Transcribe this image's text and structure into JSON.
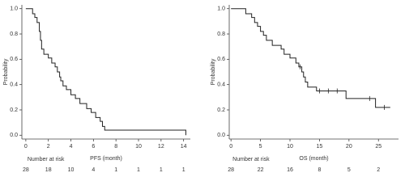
{
  "chart_data": [
    {
      "type": "step",
      "xlabel": "PFS  (month)",
      "ylabel": "Probability",
      "color": "#222222",
      "x": [
        0,
        0.6,
        0.8,
        1.0,
        1.2,
        1.3,
        1.4,
        1.6,
        2.0,
        2.3,
        2.6,
        2.8,
        3.0,
        3.1,
        3.3,
        3.6,
        4.0,
        4.4,
        4.8,
        5.4,
        5.8,
        6.2,
        6.6,
        6.8,
        7.0,
        14.2
      ],
      "values": [
        1.0,
        0.96,
        0.93,
        0.89,
        0.82,
        0.75,
        0.68,
        0.64,
        0.61,
        0.57,
        0.54,
        0.5,
        0.46,
        0.43,
        0.39,
        0.36,
        0.32,
        0.29,
        0.25,
        0.21,
        0.18,
        0.14,
        0.11,
        0.07,
        0.04,
        0.0
      ],
      "xlim": [
        -0.35,
        14.6
      ],
      "xticks": [
        0,
        2,
        4,
        6,
        8,
        10,
        12,
        14
      ],
      "ylim": [
        -0.03,
        1.03
      ],
      "yticks": [
        {
          "value": 0,
          "label": "0.0"
        },
        {
          "value": 0.2,
          "label": "0.2"
        },
        {
          "value": 0.4,
          "label": "0.4"
        },
        {
          "value": 0.6,
          "label": "0.6"
        },
        {
          "value": 0.8,
          "label": "0.8"
        },
        {
          "value": 1,
          "label": "1.0"
        }
      ],
      "risk_title": "Number at risk",
      "risk_counts": [
        28,
        18,
        10,
        4,
        1,
        1,
        1,
        1
      ]
    },
    {
      "type": "step",
      "xlabel": "OS  (month)",
      "ylabel": "Probability",
      "color": "#222222",
      "x": [
        0,
        2.5,
        3.5,
        4,
        4.5,
        5,
        5.5,
        6,
        7,
        8.5,
        9,
        10,
        11,
        11.5,
        12,
        12.3,
        12.6,
        13,
        14.5,
        19.5,
        24.5,
        27
      ],
      "values": [
        1.0,
        0.96,
        0.93,
        0.89,
        0.86,
        0.82,
        0.79,
        0.75,
        0.71,
        0.68,
        0.64,
        0.61,
        0.57,
        0.54,
        0.5,
        0.46,
        0.42,
        0.38,
        0.35,
        0.29,
        0.22,
        0.22
      ],
      "censored": {
        "x": [
          11.7,
          15,
          16.5,
          18,
          23.5,
          26
        ],
        "values": [
          0.54,
          0.35,
          0.35,
          0.35,
          0.29,
          0.22
        ]
      },
      "xlim": [
        -0.3,
        28.4
      ],
      "xticks": [
        0,
        5,
        10,
        15,
        20,
        25
      ],
      "ylim": [
        -0.03,
        1.03
      ],
      "yticks": [
        {
          "value": 0,
          "label": "0.0"
        },
        {
          "value": 0.2,
          "label": "0.2"
        },
        {
          "value": 0.4,
          "label": "0.4"
        },
        {
          "value": 0.6,
          "label": "0.6"
        },
        {
          "value": 0.8,
          "label": "0.8"
        },
        {
          "value": 1,
          "label": "1.0"
        }
      ],
      "risk_title": "Number at risk",
      "risk_counts": [
        28,
        22,
        16,
        8,
        5,
        2
      ]
    }
  ]
}
